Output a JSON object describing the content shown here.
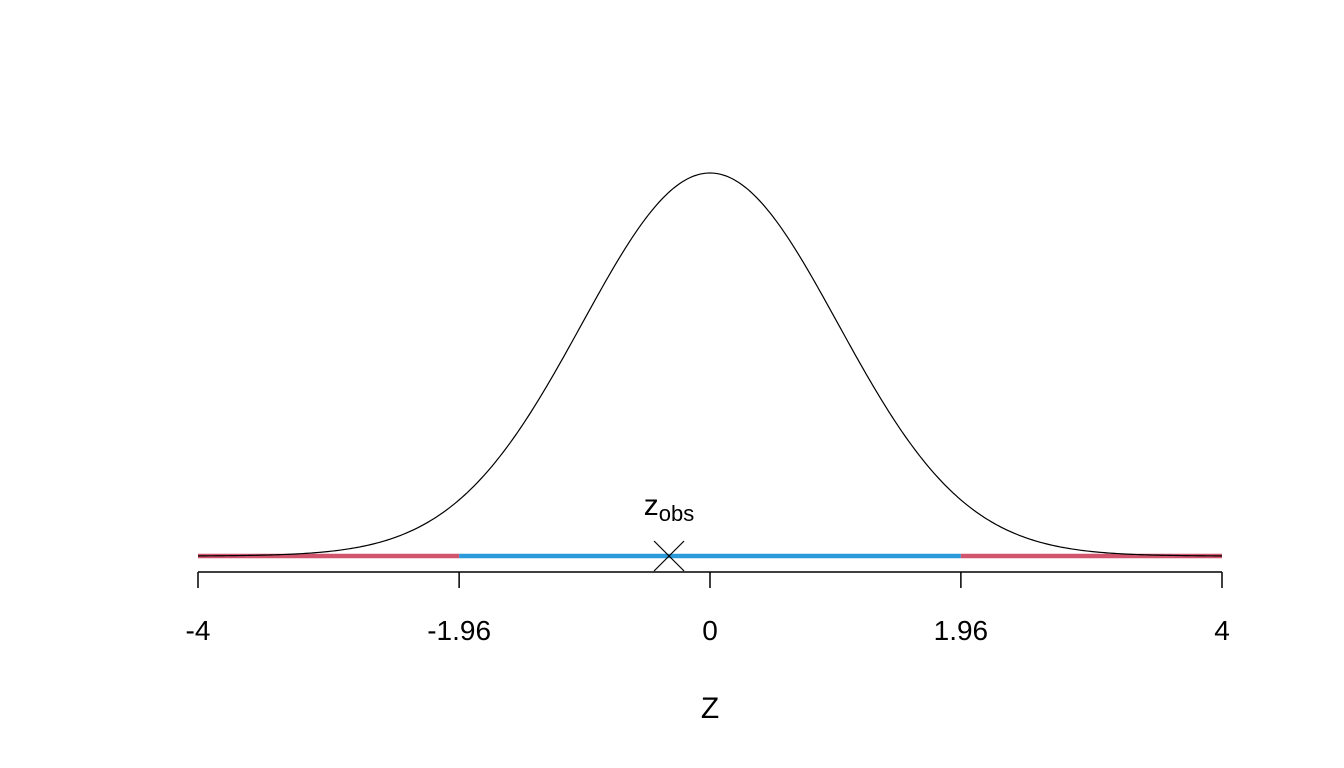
{
  "chart_data": {
    "type": "line",
    "title": "",
    "xlabel": "Z",
    "ylabel": "",
    "xlim": [
      -4,
      4
    ],
    "grid": false,
    "curve": "standard-normal-density",
    "x_ticks": [
      {
        "value": -4,
        "label": "-4"
      },
      {
        "value": -1.96,
        "label": "-1.96"
      },
      {
        "value": 0,
        "label": "0"
      },
      {
        "value": 1.96,
        "label": "1.96"
      },
      {
        "value": 4,
        "label": "4"
      }
    ],
    "regions": [
      {
        "from": -4,
        "to": -1.96,
        "color": "#D1566D"
      },
      {
        "from": -1.96,
        "to": 1.96,
        "color": "#2B9ADB"
      },
      {
        "from": 1.96,
        "to": 4,
        "color": "#D1566D"
      }
    ],
    "observed": {
      "x": -0.32,
      "marker": "cross",
      "label_main": "z",
      "label_sub": "obs"
    },
    "curve_color": "#000000"
  }
}
